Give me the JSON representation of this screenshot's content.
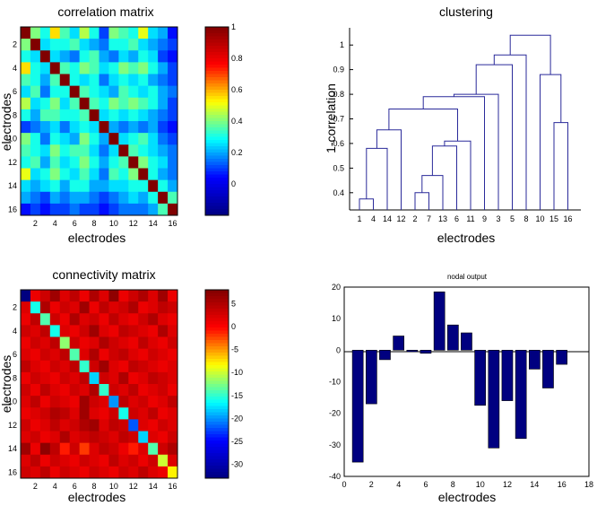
{
  "chart_data": [
    {
      "id": "corr",
      "type": "heatmap",
      "title": "correlation matrix",
      "xlabel": "electrodes",
      "ylabel": "electrodes",
      "x_ticks": [
        "2",
        "4",
        "6",
        "8",
        "10",
        "12",
        "14",
        "16"
      ],
      "y_ticks": [
        "2",
        "4",
        "6",
        "8",
        "10",
        "12",
        "14",
        "16"
      ],
      "colorbar": {
        "ticks": [
          "0",
          "0.2",
          "0.4",
          "0.6",
          "0.8",
          "1"
        ],
        "min": -0.2,
        "max": 1.0
      },
      "colormap": [
        "#000080",
        "#0000ff",
        "#00ffff",
        "#ffff00",
        "#ff0000",
        "#800000"
      ],
      "matrix": [
        [
          1.0,
          0.4,
          0.3,
          0.55,
          0.35,
          0.25,
          0.45,
          0.3,
          0.1,
          0.4,
          0.35,
          0.3,
          0.5,
          0.25,
          0.2,
          0.05
        ],
        [
          0.4,
          1.0,
          0.25,
          0.3,
          0.3,
          0.35,
          0.25,
          0.2,
          0.15,
          0.3,
          0.3,
          0.35,
          0.25,
          0.2,
          0.15,
          0.1
        ],
        [
          0.3,
          0.25,
          1.0,
          0.25,
          0.2,
          0.15,
          0.3,
          0.35,
          0.2,
          0.15,
          0.25,
          0.2,
          0.3,
          0.25,
          0.1,
          0.05
        ],
        [
          0.55,
          0.3,
          0.25,
          1.0,
          0.35,
          0.3,
          0.4,
          0.35,
          0.25,
          0.3,
          0.4,
          0.35,
          0.4,
          0.3,
          0.2,
          0.1
        ],
        [
          0.35,
          0.3,
          0.2,
          0.35,
          1.0,
          0.3,
          0.25,
          0.3,
          0.15,
          0.25,
          0.3,
          0.25,
          0.3,
          0.2,
          0.15,
          0.1
        ],
        [
          0.25,
          0.35,
          0.15,
          0.3,
          0.3,
          1.0,
          0.35,
          0.3,
          0.25,
          0.2,
          0.35,
          0.3,
          0.25,
          0.3,
          0.2,
          0.15
        ],
        [
          0.45,
          0.25,
          0.3,
          0.4,
          0.25,
          0.35,
          1.0,
          0.35,
          0.3,
          0.4,
          0.35,
          0.4,
          0.35,
          0.3,
          0.2,
          0.1
        ],
        [
          0.3,
          0.2,
          0.35,
          0.35,
          0.3,
          0.3,
          0.35,
          1.0,
          0.25,
          0.3,
          0.25,
          0.3,
          0.25,
          0.2,
          0.15,
          0.1
        ],
        [
          0.1,
          0.15,
          0.2,
          0.25,
          0.15,
          0.25,
          0.3,
          0.25,
          1.0,
          0.2,
          0.15,
          0.2,
          0.15,
          0.2,
          0.1,
          0.05
        ],
        [
          0.4,
          0.3,
          0.15,
          0.3,
          0.25,
          0.2,
          0.4,
          0.3,
          0.2,
          1.0,
          0.25,
          0.3,
          0.35,
          0.25,
          0.15,
          0.1
        ],
        [
          0.35,
          0.3,
          0.25,
          0.4,
          0.3,
          0.35,
          0.35,
          0.25,
          0.15,
          0.25,
          1.0,
          0.35,
          0.3,
          0.25,
          0.2,
          0.15
        ],
        [
          0.3,
          0.35,
          0.2,
          0.35,
          0.25,
          0.3,
          0.4,
          0.3,
          0.2,
          0.3,
          0.35,
          1.0,
          0.4,
          0.3,
          0.25,
          0.15
        ],
        [
          0.5,
          0.25,
          0.3,
          0.4,
          0.3,
          0.25,
          0.35,
          0.25,
          0.15,
          0.35,
          0.3,
          0.4,
          1.0,
          0.3,
          0.2,
          0.15
        ],
        [
          0.25,
          0.2,
          0.25,
          0.3,
          0.2,
          0.3,
          0.3,
          0.2,
          0.2,
          0.25,
          0.25,
          0.3,
          0.3,
          1.0,
          0.3,
          0.2
        ],
        [
          0.2,
          0.15,
          0.1,
          0.2,
          0.15,
          0.2,
          0.2,
          0.15,
          0.1,
          0.15,
          0.2,
          0.25,
          0.2,
          0.3,
          1.0,
          0.35
        ],
        [
          0.05,
          0.1,
          0.05,
          0.1,
          0.1,
          0.15,
          0.1,
          0.1,
          0.05,
          0.1,
          0.15,
          0.15,
          0.15,
          0.2,
          0.35,
          1.0
        ]
      ]
    },
    {
      "id": "dendro",
      "type": "dendrogram",
      "title": "clustering",
      "xlabel": "electrodes",
      "ylabel": "1-correlation",
      "ylim": [
        0.33,
        1.07
      ],
      "y_ticks": [
        0.4,
        0.5,
        0.6,
        0.7,
        0.8,
        0.9,
        1
      ],
      "y_tick_labels": [
        "0.4",
        "0.5",
        "0.6",
        "0.7",
        "0.8",
        "0.9",
        "1"
      ],
      "leaf_order": [
        "1",
        "4",
        "14",
        "12",
        "2",
        "7",
        "13",
        "6",
        "11",
        "9",
        "3",
        "5",
        "8",
        "10",
        "15",
        "16"
      ],
      "merges": [
        {
          "left": 0,
          "right": 1,
          "height": 0.375
        },
        {
          "left": 4,
          "right": 5,
          "height": 0.4
        },
        {
          "left": 17,
          "right": 6,
          "height": 0.47
        },
        {
          "left": 16,
          "right": 2,
          "height": 0.58
        },
        {
          "left": 18,
          "right": 7,
          "height": 0.59
        },
        {
          "left": 20,
          "right": 8,
          "height": 0.61
        },
        {
          "left": 19,
          "right": 3,
          "height": 0.655
        },
        {
          "left": 14,
          "right": 15,
          "height": 0.685
        },
        {
          "left": 22,
          "right": 21,
          "height": 0.74
        },
        {
          "left": 24,
          "right": 9,
          "height": 0.79
        },
        {
          "left": 25,
          "right": 10,
          "height": 0.8
        },
        {
          "left": 26,
          "right": 11,
          "height": 0.92
        },
        {
          "left": 13,
          "right": 23,
          "height": 0.88
        },
        {
          "left": 27,
          "right": 12,
          "height": 0.96
        },
        {
          "left": 29,
          "right": 28,
          "height": 1.04
        }
      ],
      "line_color": "#2a2a9a"
    },
    {
      "id": "conn",
      "type": "heatmap",
      "title": "connectivity matrix",
      "xlabel": "electrodes",
      "ylabel": "electrodes",
      "x_ticks": [
        "2",
        "4",
        "6",
        "8",
        "10",
        "12",
        "14",
        "16"
      ],
      "y_ticks": [
        "2",
        "4",
        "6",
        "8",
        "10",
        "12",
        "14",
        "16"
      ],
      "colorbar": {
        "ticks": [
          "5",
          "0",
          "-5",
          "-10",
          "-15",
          "-20",
          "-25",
          "-30"
        ],
        "min": -33,
        "max": 8
      },
      "colormap": [
        "#000080",
        "#0000ff",
        "#00ffff",
        "#ffff00",
        "#ff0000",
        "#800000"
      ],
      "diagonal": [
        -33,
        -16,
        -14,
        -16,
        -12,
        -14,
        -15,
        -18,
        -15,
        -20,
        -16,
        -22,
        -18,
        -14,
        -10,
        -8
      ],
      "off_diagonal": [
        [
          0,
          1,
          3,
          6,
          2,
          4,
          1,
          5,
          2,
          7,
          1,
          3,
          5,
          2,
          6,
          1
        ],
        [
          2,
          0,
          5,
          1,
          3,
          2,
          6,
          1,
          4,
          2,
          3,
          5,
          1,
          2,
          4,
          3
        ],
        [
          1,
          4,
          0,
          3,
          1,
          5,
          2,
          3,
          1,
          4,
          2,
          1,
          3,
          5,
          2,
          1
        ],
        [
          3,
          2,
          4,
          0,
          2,
          1,
          3,
          6,
          2,
          1,
          4,
          3,
          2,
          1,
          5,
          2
        ],
        [
          1,
          3,
          2,
          4,
          0,
          3,
          1,
          2,
          5,
          3,
          2,
          1,
          4,
          2,
          1,
          3
        ],
        [
          2,
          1,
          3,
          2,
          4,
          0,
          2,
          5,
          1,
          3,
          4,
          2,
          1,
          3,
          2,
          1
        ],
        [
          4,
          2,
          1,
          3,
          2,
          4,
          0,
          3,
          6,
          2,
          1,
          4,
          3,
          2,
          1,
          2
        ],
        [
          1,
          3,
          2,
          1,
          3,
          2,
          4,
          0,
          3,
          2,
          5,
          1,
          2,
          4,
          3,
          2
        ],
        [
          3,
          1,
          4,
          2,
          1,
          3,
          2,
          5,
          0,
          3,
          2,
          4,
          1,
          2,
          3,
          1
        ],
        [
          2,
          4,
          1,
          3,
          2,
          1,
          6,
          3,
          2,
          0,
          4,
          2,
          3,
          1,
          2,
          4
        ],
        [
          1,
          2,
          3,
          5,
          4,
          2,
          6,
          2,
          1,
          3,
          0,
          3,
          2,
          4,
          1,
          2
        ],
        [
          3,
          1,
          2,
          4,
          2,
          3,
          5,
          6,
          2,
          4,
          3,
          0,
          2,
          1,
          3,
          2
        ],
        [
          2,
          3,
          1,
          2,
          5,
          2,
          3,
          4,
          3,
          2,
          4,
          3,
          0,
          2,
          1,
          3
        ],
        [
          6,
          1,
          7,
          4,
          -1,
          3,
          -2,
          2,
          4,
          3,
          1,
          -1,
          2,
          0,
          3,
          5
        ],
        [
          2,
          4,
          1,
          3,
          2,
          1,
          3,
          2,
          1,
          4,
          2,
          3,
          1,
          3,
          0,
          2
        ],
        [
          3,
          2,
          4,
          1,
          3,
          2,
          1,
          3,
          2,
          1,
          3,
          2,
          4,
          2,
          1,
          0
        ]
      ]
    },
    {
      "id": "nodal",
      "type": "bar",
      "title": "nodal output",
      "xlabel": "electrodes",
      "x": [
        1,
        2,
        3,
        4,
        5,
        6,
        7,
        8,
        9,
        10,
        11,
        12,
        13,
        14,
        15,
        16
      ],
      "values": [
        -35.5,
        -17,
        -3,
        4.5,
        -0.5,
        -1,
        18.5,
        8,
        5.5,
        -17.5,
        -31,
        -16,
        -28,
        -6,
        -12,
        -4.5
      ],
      "xlim": [
        0,
        18
      ],
      "ylim": [
        -40,
        20
      ],
      "x_ticks": [
        "0",
        "2",
        "4",
        "6",
        "8",
        "10",
        "12",
        "14",
        "16",
        "18"
      ],
      "y_ticks": [
        "20",
        "10",
        "0",
        "-10",
        "-20",
        "-30",
        "-40"
      ],
      "bar_color": "#000080"
    }
  ]
}
